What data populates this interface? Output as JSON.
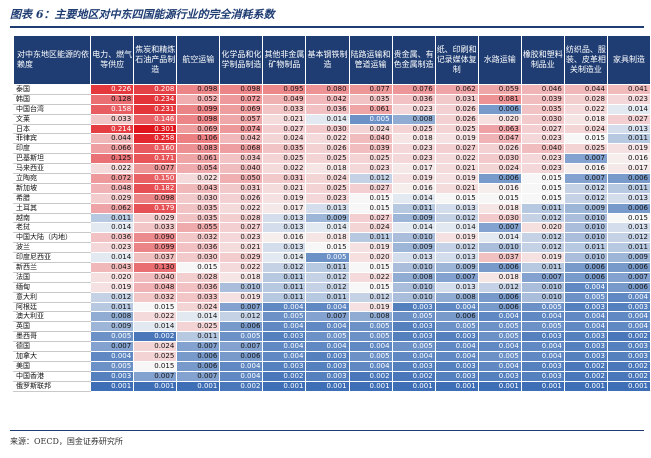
{
  "title": "图表 6：主要地区对中东四国能源行业的完全消耗系数",
  "source": "来源：OECD，国金证券研究所",
  "row_header": "对中东地区能源的依赖度",
  "columns": [
    "电力、燃气等供应",
    "焦炭和精炼石油产品制造",
    "航空运输",
    "化学品和化学制品制造",
    "其他非金属矿物制品",
    "基本钢铁制造",
    "陆路运输和管道运输",
    "贵金属、有色金属制造",
    "纸、印刷和记录媒体复制",
    "水路运输",
    "橡胶和塑料制品业",
    "纺织品、服装、皮革相关制造业",
    "家具制造"
  ],
  "colors": {
    "high": "#e0151b",
    "mid": "#f7f7f7",
    "low": "#3e6fb6",
    "header": "#1f3d73"
  },
  "rows": [
    {
      "name": "泰国",
      "values": [
        "0.226",
        "0.208",
        "0.098",
        "0.098",
        "0.095",
        "0.080",
        "0.077",
        "0.076",
        "0.062",
        "0.059",
        "0.046",
        "0.044",
        "0.041"
      ]
    },
    {
      "name": "韩国",
      "values": [
        "0.128",
        "0.234",
        "0.052",
        "0.072",
        "0.049",
        "0.042",
        "0.035",
        "0.036",
        "0.031",
        "0.081",
        "0.039",
        "0.028",
        "0.023"
      ]
    },
    {
      "name": "中国台湾",
      "values": [
        "0.158",
        "0.231",
        "0.099",
        "0.069",
        "0.033",
        "0.036",
        "0.061",
        "0.023",
        "0.026",
        "0.006",
        "0.035",
        "0.022",
        "0.014"
      ]
    },
    {
      "name": "文莱",
      "values": [
        "0.033",
        "0.146",
        "0.098",
        "0.057",
        "0.021",
        "0.014",
        "0.005",
        "0.008",
        "0.026",
        "0.020",
        "0.030",
        "0.018",
        "0.027"
      ]
    },
    {
      "name": "日本",
      "values": [
        "0.214",
        "0.301",
        "0.069",
        "0.074",
        "0.027",
        "0.030",
        "0.024",
        "0.025",
        "0.025",
        "0.063",
        "0.027",
        "0.024",
        "0.013"
      ]
    },
    {
      "name": "菲律宾",
      "values": [
        "0.044",
        "0.258",
        "0.106",
        "0.042",
        "0.024",
        "0.022",
        "0.040",
        "0.018",
        "0.019",
        "0.047",
        "0.023",
        "0.015",
        "0.011"
      ]
    },
    {
      "name": "印度",
      "values": [
        "0.066",
        "0.160",
        "0.083",
        "0.068",
        "0.035",
        "0.026",
        "0.039",
        "0.023",
        "0.027",
        "0.026",
        "0.040",
        "0.025",
        "0.019"
      ]
    },
    {
      "name": "巴基斯坦",
      "values": [
        "0.125",
        "0.171",
        "0.061",
        "0.034",
        "0.025",
        "0.025",
        "0.025",
        "0.023",
        "0.022",
        "0.030",
        "0.023",
        "0.007",
        "0.016"
      ]
    },
    {
      "name": "马来西亚",
      "values": [
        "0.022",
        "0.077",
        "0.054",
        "0.040",
        "0.022",
        "0.018",
        "0.023",
        "0.017",
        "0.021",
        "0.024",
        "0.023",
        "0.016",
        "0.017"
      ]
    },
    {
      "name": "立陶宛",
      "values": [
        "0.072",
        "0.150",
        "0.022",
        "0.050",
        "0.031",
        "0.024",
        "0.012",
        "0.019",
        "0.019",
        "0.006",
        "0.015",
        "0.007",
        "0.006"
      ]
    },
    {
      "name": "新加坡",
      "values": [
        "0.048",
        "0.182",
        "0.043",
        "0.031",
        "0.021",
        "0.025",
        "0.027",
        "0.016",
        "0.021",
        "0.016",
        "0.015",
        "0.012",
        "0.011"
      ]
    },
    {
      "name": "希腊",
      "values": [
        "0.029",
        "0.098",
        "0.030",
        "0.026",
        "0.019",
        "0.023",
        "0.015",
        "0.014",
        "0.015",
        "0.015",
        "0.015",
        "0.012",
        "0.013"
      ]
    },
    {
      "name": "土耳其",
      "values": [
        "0.062",
        "0.179",
        "0.035",
        "0.022",
        "0.017",
        "0.013",
        "0.015",
        "0.011",
        "0.013",
        "0.018",
        "0.011",
        "0.009",
        "0.006"
      ]
    },
    {
      "name": "越南",
      "values": [
        "0.011",
        "0.029",
        "0.035",
        "0.028",
        "0.013",
        "0.009",
        "0.027",
        "0.009",
        "0.012",
        "0.030",
        "0.012",
        "0.010",
        "0.015"
      ]
    },
    {
      "name": "老挝",
      "values": [
        "0.014",
        "0.033",
        "0.055",
        "0.027",
        "0.013",
        "0.014",
        "0.024",
        "0.014",
        "0.014",
        "0.007",
        "0.020",
        "0.010",
        "0.013"
      ]
    },
    {
      "name": "中国大陆（内地）",
      "values": [
        "0.036",
        "0.090",
        "0.032",
        "0.023",
        "0.016",
        "0.018",
        "0.011",
        "0.010",
        "0.019",
        "0.014",
        "0.012",
        "0.010",
        "0.012"
      ]
    },
    {
      "name": "波兰",
      "values": [
        "0.023",
        "0.099",
        "0.036",
        "0.021",
        "0.013",
        "0.015",
        "0.019",
        "0.009",
        "0.012",
        "0.010",
        "0.012",
        "0.011",
        "0.011"
      ]
    },
    {
      "name": "印度尼西亚",
      "values": [
        "0.014",
        "0.037",
        "0.030",
        "0.029",
        "0.014",
        "0.005",
        "0.020",
        "0.013",
        "0.013",
        "0.037",
        "0.019",
        "0.010",
        "0.009"
      ]
    },
    {
      "name": "新西兰",
      "values": [
        "0.043",
        "0.130",
        "0.015",
        "0.022",
        "0.012",
        "0.011",
        "0.015",
        "0.010",
        "0.009",
        "0.006",
        "0.011",
        "0.006",
        "0.006"
      ]
    },
    {
      "name": "法国",
      "values": [
        "0.020",
        "0.040",
        "0.028",
        "0.018",
        "0.011",
        "0.012",
        "0.022",
        "0.008",
        "0.007",
        "0.018",
        "0.007",
        "0.006",
        "0.007"
      ]
    },
    {
      "name": "缅甸",
      "values": [
        "0.019",
        "0.048",
        "0.036",
        "0.010",
        "0.011",
        "0.012",
        "0.015",
        "0.010",
        "0.013",
        "0.012",
        "0.010",
        "0.004",
        "0.006"
      ]
    },
    {
      "name": "意大利",
      "values": [
        "0.012",
        "0.032",
        "0.033",
        "0.019",
        "0.011",
        "0.011",
        "0.012",
        "0.010",
        "0.008",
        "0.006",
        "0.010",
        "0.005",
        "0.004"
      ]
    },
    {
      "name": "阿根廷",
      "values": [
        "0.011",
        "0.015",
        "0.024",
        "0.007",
        "0.004",
        "0.004",
        "0.019",
        "0.003",
        "0.004",
        "0.006",
        "0.005",
        "0.003",
        "0.003"
      ]
    },
    {
      "name": "澳大利亚",
      "values": [
        "0.008",
        "0.022",
        "0.014",
        "0.012",
        "0.005",
        "0.007",
        "0.008",
        "0.005",
        "0.006",
        "0.004",
        "0.004",
        "0.004",
        "0.004"
      ]
    },
    {
      "name": "英国",
      "values": [
        "0.009",
        "0.014",
        "0.025",
        "0.006",
        "0.004",
        "0.004",
        "0.005",
        "0.003",
        "0.005",
        "0.005",
        "0.005",
        "0.004",
        "0.004"
      ]
    },
    {
      "name": "墨西哥",
      "values": [
        "0.005",
        "0.002",
        "0.011",
        "0.005",
        "0.003",
        "0.005",
        "0.005",
        "0.003",
        "0.003",
        "0.005",
        "0.003",
        "0.003",
        "0.002"
      ]
    },
    {
      "name": "德国",
      "values": [
        "0.007",
        "0.024",
        "0.007",
        "0.007",
        "0.004",
        "0.004",
        "0.004",
        "0.005",
        "0.004",
        "0.004",
        "0.004",
        "0.003",
        "0.003"
      ]
    },
    {
      "name": "加拿大",
      "values": [
        "0.004",
        "0.025",
        "0.006",
        "0.006",
        "0.004",
        "0.003",
        "0.005",
        "0.004",
        "0.004",
        "0.005",
        "0.004",
        "0.003",
        "0.003"
      ]
    },
    {
      "name": "美国",
      "values": [
        "0.005",
        "0.015",
        "0.006",
        "0.004",
        "0.003",
        "0.003",
        "0.004",
        "0.003",
        "0.003",
        "0.004",
        "0.003",
        "0.002",
        "0.002"
      ]
    },
    {
      "name": "中国香港",
      "values": [
        "0.003",
        "0.007",
        "0.007",
        "0.004",
        "0.002",
        "0.003",
        "0.002",
        "0.002",
        "0.003",
        "0.003",
        "0.003",
        "0.002",
        "0.002"
      ]
    },
    {
      "name": "俄罗斯联邦",
      "values": [
        "0.001",
        "0.001",
        "0.001",
        "0.002",
        "0.001",
        "0.001",
        "0.001",
        "0.001",
        "0.001",
        "0.001",
        "0.001",
        "0.001",
        "0.001"
      ]
    }
  ]
}
